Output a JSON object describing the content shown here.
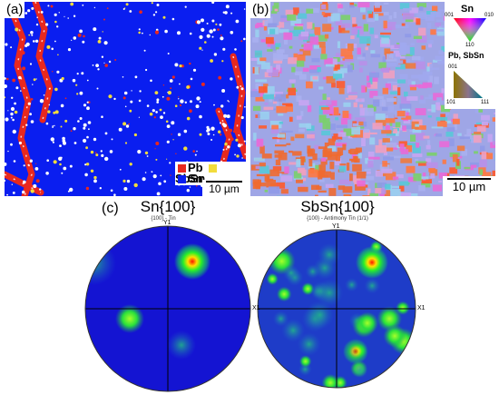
{
  "panel_a": {
    "tag": "(a)",
    "legend": [
      {
        "label": "Pb",
        "color": "#e8281e"
      },
      {
        "label": "SbSn",
        "color": "#f2dc3c"
      },
      {
        "label": "Sn",
        "color": "#0a1ef0"
      }
    ],
    "scale": "10 µm"
  },
  "panel_b": {
    "tag": "(b)",
    "key_sn": {
      "title": "Sn",
      "corner_001": "001",
      "corner_010": "010",
      "corner_110": "110"
    },
    "key_pb": {
      "title": "Pb, SbSn",
      "corner_001": "001",
      "corner_101": "101",
      "corner_111": "111"
    },
    "scale": "10 µm"
  },
  "panel_c": {
    "tag": "(c)",
    "figures": [
      {
        "title": "Sn{100}",
        "subtitle": "{100} - Tin",
        "y_axis": "Y1",
        "x_axis": "X1"
      },
      {
        "title": "SbSn{100}",
        "subtitle": "{100} - Antimony Tin (1/1)",
        "y_axis": "Y1",
        "x_axis": "X1"
      }
    ]
  },
  "colors": {
    "pb": "#e8281e",
    "sn": "#0a1ef0",
    "sbsn": "#f2dc3c",
    "pf_background": "#1414d2"
  }
}
